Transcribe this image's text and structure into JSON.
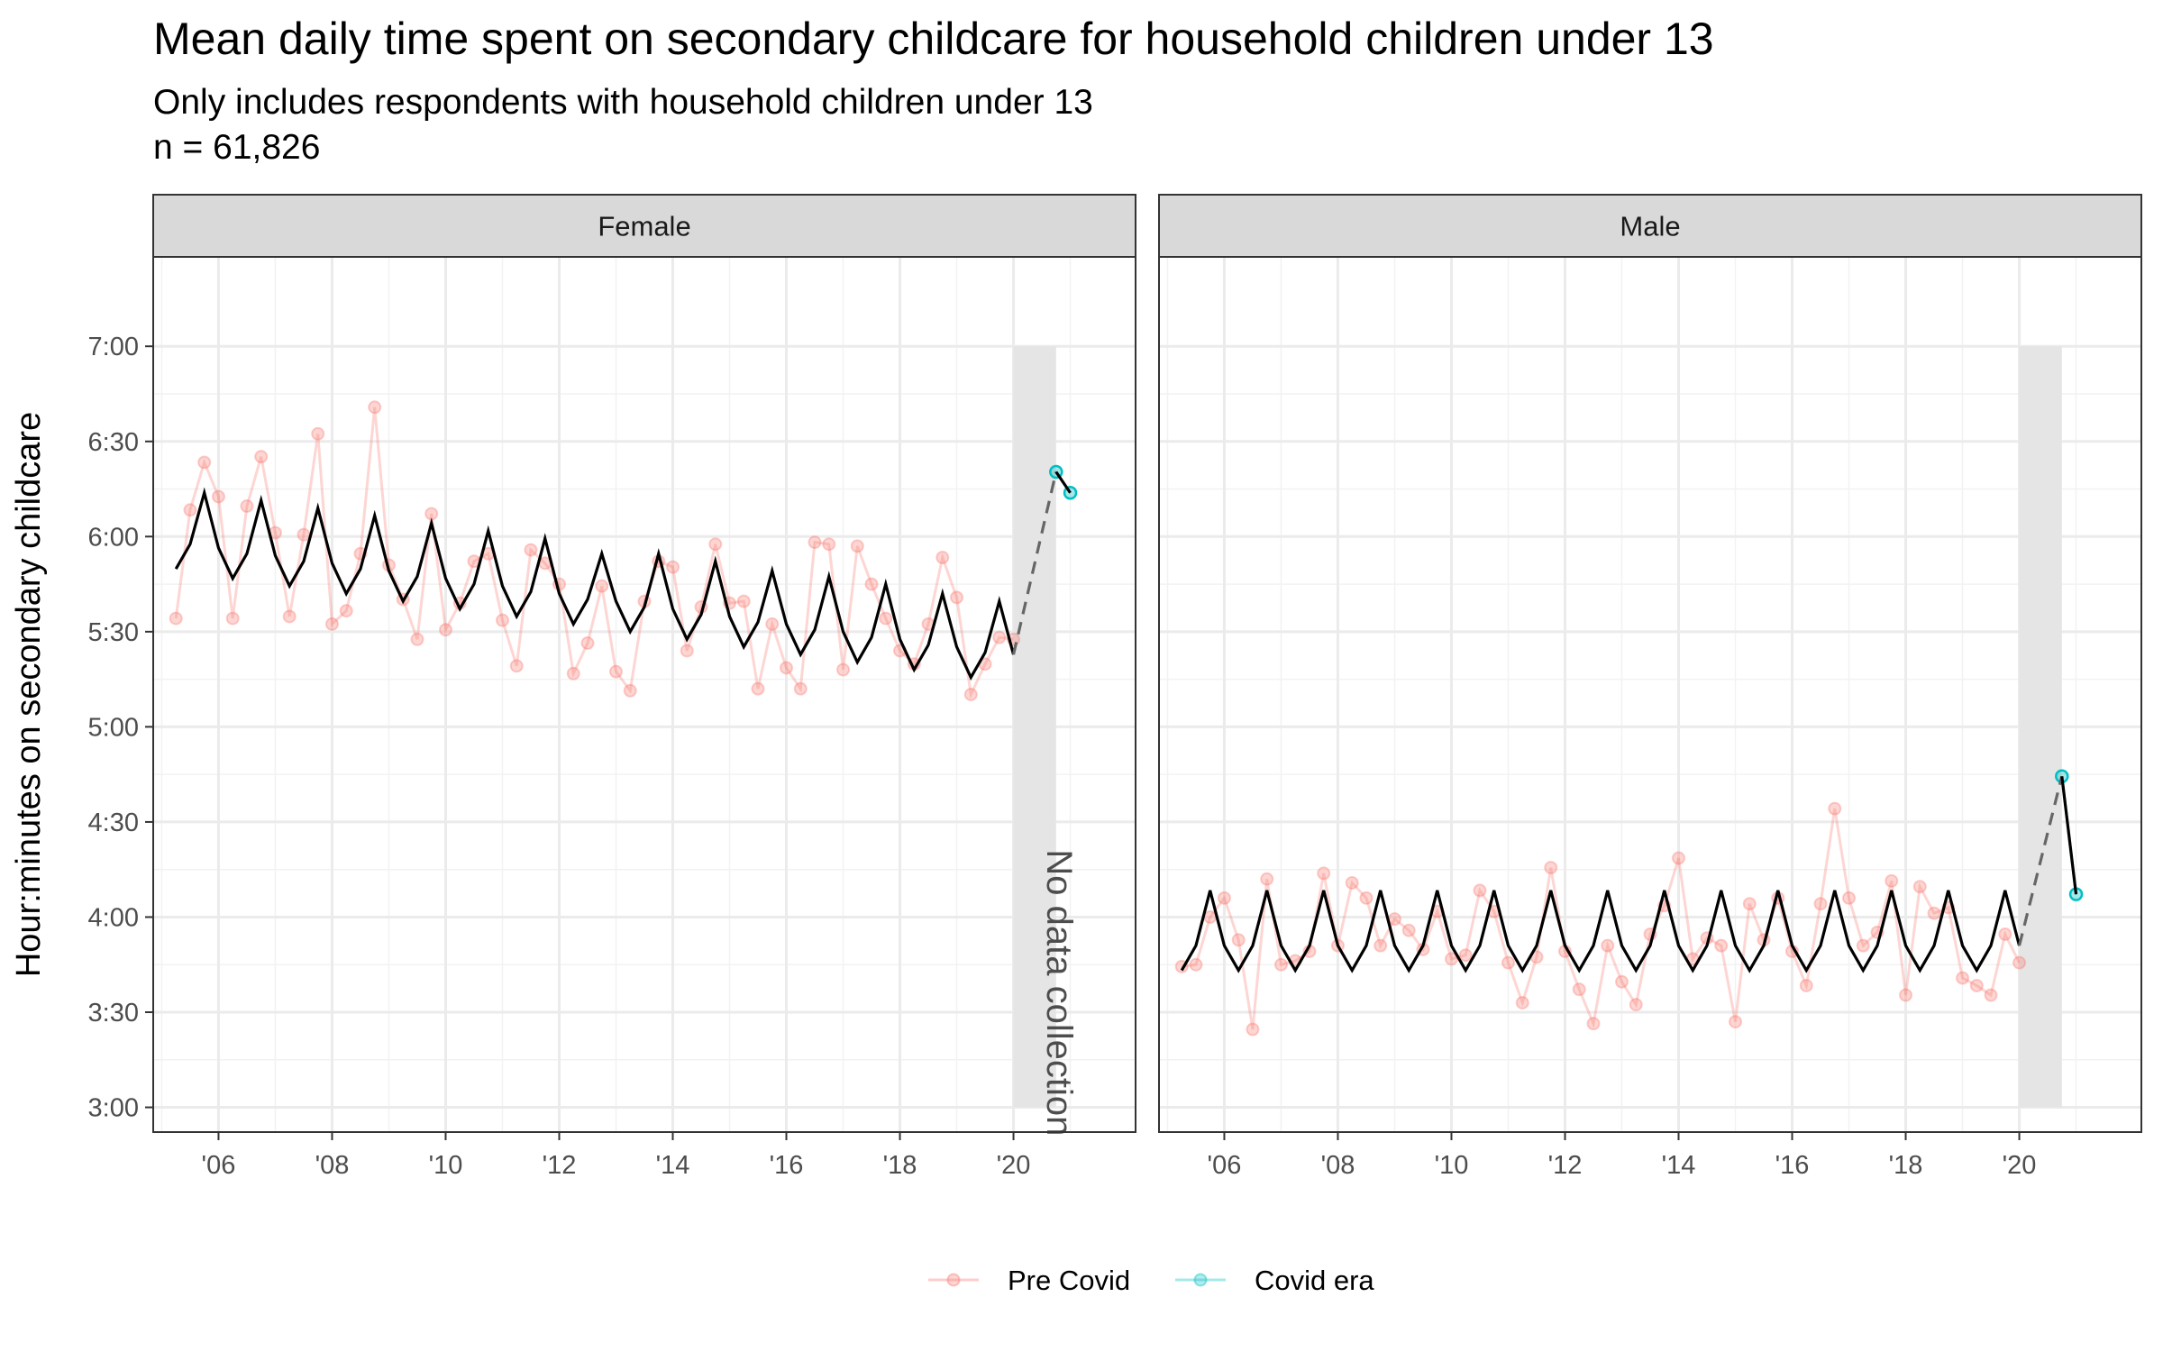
{
  "chart_data": {
    "type": "line",
    "title": "Mean daily time spent on secondary childcare for household children under 13",
    "subtitle": "Only includes respondents with household children under 13",
    "note": "n = 61,826",
    "ylabel": "Hour:minutes on secondary childcare",
    "xlabel": "",
    "y_unit": "hours",
    "ylim": [
      2.87,
      7.47
    ],
    "xlim": [
      2004.85,
      2022.15
    ],
    "y_ticks": [
      3.0,
      3.5,
      4.0,
      4.5,
      5.0,
      5.5,
      6.0,
      6.5,
      7.0
    ],
    "y_tick_labels": [
      "3:00",
      "3:30",
      "4:00",
      "4:30",
      "5:00",
      "5:30",
      "6:00",
      "6:30",
      "7:00"
    ],
    "x_ticks": [
      2006,
      2008,
      2010,
      2012,
      2014,
      2016,
      2018,
      2020
    ],
    "x_tick_labels": [
      "'06",
      "'08",
      "'10",
      "'12",
      "'14",
      "'16",
      "'18",
      "'20"
    ],
    "grid": true,
    "legend_position": "bottom",
    "legend": [
      {
        "name": "Pre Covid",
        "color": "#F8766D"
      },
      {
        "name": "Covid era",
        "color": "#00BFC4"
      }
    ],
    "no_data_band": {
      "x_start": 2020.0,
      "x_end": 2020.75,
      "label": "No data collection",
      "y_top": 7.0,
      "y_bottom": 3.0
    },
    "panels": [
      {
        "facet": "Female",
        "pre_covid_x": [
          2005.25,
          2005.5,
          2005.75,
          2006.0,
          2006.25,
          2006.5,
          2006.75,
          2007.0,
          2007.25,
          2007.5,
          2007.75,
          2008.0,
          2008.25,
          2008.5,
          2008.75,
          2009.0,
          2009.25,
          2009.5,
          2009.75,
          2010.0,
          2010.25,
          2010.5,
          2010.75,
          2011.0,
          2011.25,
          2011.5,
          2011.75,
          2012.0,
          2012.25,
          2012.5,
          2012.75,
          2013.0,
          2013.25,
          2013.5,
          2013.75,
          2014.0,
          2014.25,
          2014.5,
          2014.75,
          2015.0,
          2015.25,
          2015.5,
          2015.75,
          2016.0,
          2016.25,
          2016.5,
          2016.75,
          2017.0,
          2017.25,
          2017.5,
          2017.75,
          2018.0,
          2018.25,
          2018.5,
          2018.75,
          2019.0,
          2019.25,
          2019.5,
          2019.75,
          2020.0
        ],
        "pre_covid_y": [
          5.57,
          6.14,
          6.39,
          6.21,
          5.57,
          6.16,
          6.42,
          6.02,
          5.58,
          6.01,
          6.54,
          5.54,
          5.61,
          5.91,
          6.68,
          5.85,
          5.67,
          5.46,
          6.12,
          5.51,
          5.65,
          5.87,
          5.91,
          5.56,
          5.32,
          5.93,
          5.86,
          5.75,
          5.28,
          5.44,
          5.74,
          5.29,
          5.19,
          5.66,
          5.87,
          5.84,
          5.4,
          5.63,
          5.96,
          5.65,
          5.66,
          5.2,
          5.54,
          5.31,
          5.2,
          5.97,
          5.96,
          5.3,
          5.95,
          5.75,
          5.57,
          5.4,
          5.33,
          5.54,
          5.89,
          5.68,
          5.17,
          5.33,
          5.47,
          5.46
        ],
        "covid_x": [
          2020.75,
          2021.0
        ],
        "covid_y": [
          6.34,
          6.23
        ],
        "trend_x": [
          2005.25,
          2005.5,
          2005.75,
          2006.0,
          2006.25,
          2006.5,
          2006.75,
          2007.0,
          2007.25,
          2007.5,
          2007.75,
          2008.0,
          2008.25,
          2008.5,
          2008.75,
          2009.0,
          2009.25,
          2009.5,
          2009.75,
          2010.0,
          2010.25,
          2010.5,
          2010.75,
          2011.0,
          2011.25,
          2011.5,
          2011.75,
          2012.0,
          2012.25,
          2012.5,
          2012.75,
          2013.0,
          2013.25,
          2013.5,
          2013.75,
          2014.0,
          2014.25,
          2014.5,
          2014.75,
          2015.0,
          2015.25,
          2015.5,
          2015.75,
          2016.0,
          2016.25,
          2016.5,
          2016.75,
          2017.0,
          2017.25,
          2017.5,
          2017.75,
          2018.0,
          2018.25,
          2018.5,
          2018.75,
          2019.0,
          2019.25,
          2019.5,
          2019.75,
          2020.0
        ],
        "trend_y": [
          5.83,
          5.96,
          6.23,
          5.94,
          5.78,
          5.91,
          6.19,
          5.9,
          5.74,
          5.87,
          6.15,
          5.86,
          5.7,
          5.83,
          6.11,
          5.82,
          5.66,
          5.79,
          6.07,
          5.78,
          5.62,
          5.75,
          6.03,
          5.74,
          5.58,
          5.71,
          5.99,
          5.7,
          5.54,
          5.67,
          5.91,
          5.66,
          5.5,
          5.63,
          5.91,
          5.62,
          5.46,
          5.59,
          5.87,
          5.58,
          5.42,
          5.55,
          5.82,
          5.54,
          5.38,
          5.51,
          5.79,
          5.5,
          5.34,
          5.47,
          5.75,
          5.46,
          5.3,
          5.43,
          5.7,
          5.42,
          5.26,
          5.39,
          5.66,
          5.38
        ],
        "covid_trend_x": [
          2020.75,
          2021.0
        ],
        "covid_trend_y": [
          6.34,
          6.23
        ]
      },
      {
        "facet": "Male",
        "pre_covid_x": [
          2005.25,
          2005.5,
          2005.75,
          2006.0,
          2006.25,
          2006.5,
          2006.75,
          2007.0,
          2007.25,
          2007.5,
          2007.75,
          2008.0,
          2008.25,
          2008.5,
          2008.75,
          2009.0,
          2009.25,
          2009.5,
          2009.75,
          2010.0,
          2010.25,
          2010.5,
          2010.75,
          2011.0,
          2011.25,
          2011.5,
          2011.75,
          2012.0,
          2012.25,
          2012.5,
          2012.75,
          2013.0,
          2013.25,
          2013.5,
          2013.75,
          2014.0,
          2014.25,
          2014.5,
          2014.75,
          2015.0,
          2015.25,
          2015.5,
          2015.75,
          2016.0,
          2016.25,
          2016.5,
          2016.75,
          2017.0,
          2017.25,
          2017.5,
          2017.75,
          2018.0,
          2018.25,
          2018.5,
          2018.75,
          2019.0,
          2019.25,
          2019.5,
          2019.75,
          2020.0
        ],
        "pre_covid_y": [
          3.74,
          3.75,
          4.0,
          4.1,
          3.88,
          3.41,
          4.2,
          3.75,
          3.77,
          3.82,
          4.23,
          3.85,
          4.18,
          4.1,
          3.85,
          3.99,
          3.93,
          3.83,
          4.03,
          3.78,
          3.8,
          4.14,
          4.03,
          3.76,
          3.55,
          3.79,
          4.26,
          3.82,
          3.62,
          3.44,
          3.85,
          3.66,
          3.54,
          3.91,
          4.06,
          4.31,
          3.78,
          3.89,
          3.85,
          3.45,
          4.07,
          3.88,
          4.1,
          3.82,
          3.64,
          4.07,
          4.57,
          4.1,
          3.85,
          3.92,
          4.19,
          3.59,
          4.16,
          4.02,
          4.05,
          3.68,
          3.64,
          3.59,
          3.91,
          3.76
        ],
        "covid_x": [
          2020.75,
          2021.0
        ],
        "covid_y": [
          4.74,
          4.12
        ],
        "trend_x": [
          2005.25,
          2005.5,
          2005.75,
          2006.0,
          2006.25,
          2006.5,
          2006.75,
          2007.0,
          2007.25,
          2007.5,
          2007.75,
          2008.0,
          2008.25,
          2008.5,
          2008.75,
          2009.0,
          2009.25,
          2009.5,
          2009.75,
          2010.0,
          2010.25,
          2010.5,
          2010.75,
          2011.0,
          2011.25,
          2011.5,
          2011.75,
          2012.0,
          2012.25,
          2012.5,
          2012.75,
          2013.0,
          2013.25,
          2013.5,
          2013.75,
          2014.0,
          2014.25,
          2014.5,
          2014.75,
          2015.0,
          2015.25,
          2015.5,
          2015.75,
          2016.0,
          2016.25,
          2016.5,
          2016.75,
          2017.0,
          2017.25,
          2017.5,
          2017.75,
          2018.0,
          2018.25,
          2018.5,
          2018.75,
          2019.0,
          2019.25,
          2019.5,
          2019.75,
          2020.0
        ],
        "trend_y": [
          3.72,
          3.85,
          4.14,
          3.85,
          3.72,
          3.85,
          4.14,
          3.85,
          3.72,
          3.85,
          4.14,
          3.85,
          3.72,
          3.85,
          4.14,
          3.85,
          3.72,
          3.85,
          4.14,
          3.85,
          3.72,
          3.85,
          4.14,
          3.85,
          3.72,
          3.85,
          4.14,
          3.85,
          3.72,
          3.85,
          4.14,
          3.85,
          3.72,
          3.85,
          4.14,
          3.85,
          3.72,
          3.85,
          4.14,
          3.85,
          3.72,
          3.85,
          4.14,
          3.85,
          3.72,
          3.85,
          4.14,
          3.85,
          3.72,
          3.85,
          4.14,
          3.85,
          3.72,
          3.85,
          4.14,
          3.85,
          3.72,
          3.85,
          4.14,
          3.85
        ],
        "covid_trend_x": [
          2020.75,
          2021.0
        ],
        "covid_trend_y": [
          4.74,
          4.12
        ]
      }
    ]
  }
}
